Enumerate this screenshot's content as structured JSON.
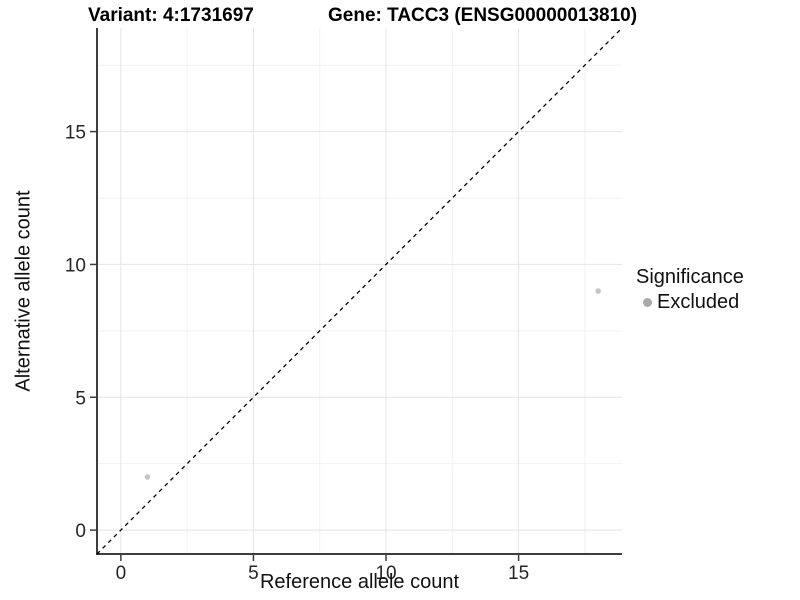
{
  "header": {
    "title_left": "Variant: 4:1731697",
    "title_right": "Gene: TACC3 (ENSG00000013810)"
  },
  "chart_data": {
    "type": "scatter",
    "xlabel": "Reference allele count",
    "ylabel": "Alternative allele count",
    "xlim": [
      -0.9,
      18.9
    ],
    "ylim": [
      -0.9,
      18.9
    ],
    "x_ticks": [
      0,
      5,
      10,
      15
    ],
    "y_ticks": [
      0,
      5,
      10,
      15
    ],
    "x_minor_ticks": [
      2.5,
      7.5,
      12.5,
      17.5
    ],
    "y_minor_ticks": [
      2.5,
      7.5,
      12.5,
      17.5
    ],
    "grid": true,
    "legend_position": "right",
    "identity_line": {
      "slope": 1,
      "intercept": 0,
      "style": "dashed",
      "color": "#000000"
    },
    "series": [
      {
        "name": "Excluded",
        "point_color": "#c4c4c4",
        "points": [
          {
            "x": 1,
            "y": 2
          },
          {
            "x": 18,
            "y": 9
          }
        ]
      }
    ],
    "legend": {
      "title": "Significance",
      "items": [
        {
          "label": "Excluded",
          "color": "#a9a9a9"
        }
      ]
    }
  },
  "colors": {
    "axis_line": "#3d3d3d",
    "tick_mark": "#3d3d3d",
    "tick_label": "#262626",
    "grid_major": "#e4e4e4",
    "grid_minor": "#f2f2f2",
    "background": "#ffffff"
  },
  "icons": {
    "legend_point": "filled-circle"
  }
}
